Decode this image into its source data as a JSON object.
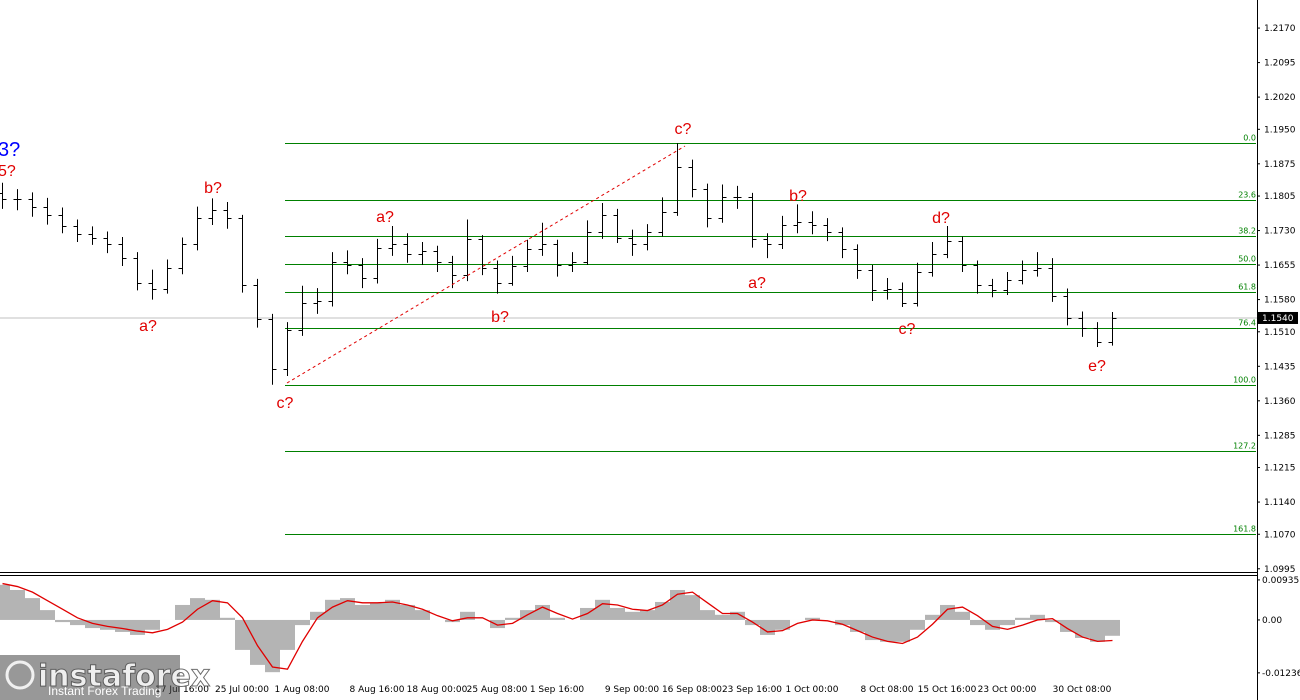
{
  "chart_data": [
    {
      "type": "ohlc",
      "color": "#000000",
      "ylim": [
        1.0988,
        1.2231
      ],
      "yticks": [
        {
          "value": 1.217,
          "label": "1.2170"
        },
        1.2095,
        {
          "value": 1.202,
          "label": "1.2020"
        },
        {
          "value": 1.195,
          "label": "1.1950"
        },
        1.1875,
        1.1805,
        {
          "value": 1.173,
          "label": "1.1730"
        },
        1.1655,
        {
          "value": 1.158,
          "label": "1.1580"
        },
        {
          "value": 1.151,
          "label": "1.1510"
        },
        1.1435,
        {
          "value": 1.136,
          "label": "1.1360"
        },
        1.1285,
        1.1215,
        {
          "value": 1.114,
          "label": "1.1140"
        },
        {
          "value": 1.107,
          "label": "1.1070"
        },
        1.0995
      ],
      "categories": [
        null,
        null,
        null,
        null,
        null,
        null,
        null,
        null,
        null,
        null,
        null,
        null,
        "17 Jul 16:00",
        null,
        null,
        null,
        "25 Jul 00:00",
        null,
        null,
        null,
        "1 Aug 08:00",
        null,
        null,
        null,
        null,
        "8 Aug 16:00",
        null,
        null,
        null,
        "18 Aug 00:00",
        null,
        null,
        null,
        "25 Aug 08:00",
        null,
        null,
        null,
        "1 Sep 16:00",
        null,
        null,
        null,
        null,
        "9 Sep 00:00",
        null,
        null,
        null,
        "16 Sep 08:00",
        null,
        null,
        null,
        "23 Sep 16:00",
        null,
        null,
        null,
        "1 Oct 00:00",
        null,
        null,
        null,
        null,
        "8 Oct 08:00",
        null,
        null,
        null,
        "15 Oct 16:00",
        null,
        null,
        null,
        "23 Oct 00:00",
        null,
        null,
        null,
        null,
        "30 Oct 08:00",
        null,
        null
      ],
      "open": [
        1.1812,
        1.1798,
        1.1798,
        1.1782,
        1.1764,
        1.174,
        1.1722,
        1.1713,
        1.17,
        1.1671,
        1.1617,
        1.1604,
        1.1649,
        1.17,
        1.1758,
        1.1775,
        1.1758,
        1.1611,
        1.1537,
        1.1429,
        1.1514,
        1.1573,
        1.1577,
        1.1662,
        1.1655,
        1.1626,
        1.1693,
        1.17,
        1.1678,
        1.1685,
        1.1662,
        1.1633,
        1.1711,
        1.1649,
        1.1617,
        1.1653,
        1.1689,
        1.17,
        1.1655,
        1.1662,
        1.1726,
        1.1764,
        1.1713,
        1.17,
        1.1726,
        1.1771,
        1.1869,
        1.182,
        1.1758,
        1.1802,
        1.1802,
        1.1711,
        1.17,
        1.1742,
        1.1749,
        1.1742,
        1.1726,
        1.1689,
        1.1644,
        1.16,
        1.1604,
        1.1573,
        1.164,
        1.1678,
        1.1707,
        1.1655,
        1.1611,
        1.16,
        1.1622,
        1.1644,
        1.1649,
        1.1588,
        1.1541,
        1.1519,
        1.1487
      ],
      "high": [
        1.1834,
        1.182,
        1.1813,
        1.1801,
        1.178,
        1.1754,
        1.1739,
        1.1728,
        1.1716,
        1.1683,
        1.1645,
        1.1667,
        1.1715,
        1.1782,
        1.18,
        1.1792,
        1.1764,
        1.1625,
        1.1549,
        1.1531,
        1.161,
        1.1605,
        1.1683,
        1.1687,
        1.167,
        1.1712,
        1.174,
        1.1724,
        1.1705,
        1.1697,
        1.1675,
        1.1754,
        1.172,
        1.1665,
        1.1675,
        1.171,
        1.1747,
        1.171,
        1.1683,
        1.1752,
        1.179,
        1.1777,
        1.1732,
        1.1744,
        1.1802,
        1.192,
        1.1884,
        1.1832,
        1.183,
        1.1827,
        1.1812,
        1.1724,
        1.1762,
        1.1787,
        1.1772,
        1.1757,
        1.1737,
        1.17,
        1.1655,
        1.1627,
        1.1617,
        1.166,
        1.1705,
        1.174,
        1.1717,
        1.1665,
        1.1625,
        1.164,
        1.1665,
        1.1683,
        1.167,
        1.1604,
        1.1554,
        1.1531,
        1.1553
      ],
      "low": [
        1.1777,
        1.1774,
        1.176,
        1.1743,
        1.1724,
        1.1705,
        1.1699,
        1.1681,
        1.1653,
        1.16,
        1.158,
        1.1593,
        1.1635,
        1.1687,
        1.1742,
        1.1734,
        1.1595,
        1.1519,
        1.1395,
        1.1414,
        1.1501,
        1.1549,
        1.1565,
        1.1635,
        1.1605,
        1.1615,
        1.1675,
        1.166,
        1.1655,
        1.164,
        1.1605,
        1.162,
        1.1633,
        1.1593,
        1.161,
        1.164,
        1.1675,
        1.163,
        1.164,
        1.1655,
        1.1712,
        1.1703,
        1.1675,
        1.1687,
        1.1717,
        1.1762,
        1.1802,
        1.1737,
        1.1747,
        1.1777,
        1.1693,
        1.167,
        1.169,
        1.1724,
        1.1722,
        1.1707,
        1.167,
        1.1625,
        1.1577,
        1.158,
        1.1564,
        1.1565,
        1.163,
        1.167,
        1.164,
        1.1593,
        1.1585,
        1.159,
        1.1613,
        1.163,
        1.1575,
        1.1524,
        1.1499,
        1.1477,
        1.148
      ],
      "close": [
        1.1798,
        1.1798,
        1.1782,
        1.1764,
        1.174,
        1.1722,
        1.1713,
        1.17,
        1.1671,
        1.1617,
        1.1604,
        1.1649,
        1.17,
        1.1758,
        1.1775,
        1.1758,
        1.1611,
        1.1537,
        1.1429,
        1.1514,
        1.1573,
        1.1577,
        1.1662,
        1.1655,
        1.1626,
        1.1693,
        1.17,
        1.1678,
        1.1685,
        1.1662,
        1.1633,
        1.1711,
        1.1649,
        1.1617,
        1.1653,
        1.1689,
        1.17,
        1.1655,
        1.1662,
        1.1726,
        1.1764,
        1.1713,
        1.17,
        1.1726,
        1.1771,
        1.1869,
        1.182,
        1.1758,
        1.1802,
        1.1802,
        1.1711,
        1.17,
        1.1742,
        1.1749,
        1.1742,
        1.1726,
        1.1689,
        1.1644,
        1.16,
        1.1604,
        1.1573,
        1.164,
        1.1678,
        1.1707,
        1.1655,
        1.1611,
        1.16,
        1.1622,
        1.1644,
        1.1649,
        1.1588,
        1.1541,
        1.1519,
        1.1487,
        1.154
      ],
      "last_price": {
        "value": 1.154,
        "label": "1.1540"
      },
      "fib_color": "#008000",
      "fib_levels": [
        {
          "label": "0.0",
          "value": 1.192
        },
        {
          "label": "23.6",
          "value": 1.1796
        },
        {
          "label": "38.2",
          "value": 1.1719
        },
        {
          "label": "50.0",
          "value": 1.1658
        },
        {
          "label": "61.8",
          "value": 1.1596
        },
        {
          "label": "76.4",
          "value": 1.1519
        },
        {
          "label": "100.0",
          "value": 1.1395
        },
        {
          "label": "127.2",
          "value": 1.1252
        },
        {
          "label": "161.8",
          "value": 1.1071
        }
      ],
      "annotations": [
        {
          "text": "3?",
          "color": "#0000ff"
        },
        {
          "text": "5?",
          "color": "#e00000"
        },
        {
          "text": "a?",
          "color": "#e00000"
        },
        {
          "text": "b?",
          "color": "#e00000"
        },
        {
          "text": "c?",
          "color": "#e00000"
        },
        {
          "text": "a?",
          "color": "#e00000"
        },
        {
          "text": "b?",
          "color": "#e00000"
        },
        {
          "text": "c?",
          "color": "#e00000"
        },
        {
          "text": "a?",
          "color": "#e00000"
        },
        {
          "text": "b?",
          "color": "#e00000"
        },
        {
          "text": "c?",
          "color": "#e00000"
        },
        {
          "text": "d?",
          "color": "#e00000"
        },
        {
          "text": "e?",
          "color": "#e00000"
        }
      ]
    },
    {
      "type": "macd",
      "color": "#b4b4b4",
      "signal_color": "#e00000",
      "ylim": [
        -0.0187,
        0.0105
      ],
      "yticks": [
        0.00935,
        {
          "value": 0,
          "label": "0.00"
        },
        -0.01236
      ],
      "histogram": [
        0.0082,
        0.007,
        0.0051,
        0.0023,
        -0.0005,
        -0.0012,
        -0.0019,
        -0.0023,
        -0.0028,
        -0.0035,
        -0.0023,
        0.0,
        0.0035,
        0.0051,
        0.0047,
        0.0005,
        -0.007,
        -0.0105,
        -0.0122,
        -0.007,
        -0.0012,
        0.0019,
        0.0047,
        0.0051,
        0.0035,
        0.004,
        0.0047,
        0.0035,
        0.0023,
        0.0,
        -0.0005,
        0.0019,
        0.0,
        -0.0019,
        0.0005,
        0.0023,
        0.0035,
        0.0005,
        0.0,
        0.0028,
        0.0047,
        0.0028,
        0.0019,
        0.0023,
        0.0042,
        0.007,
        0.0058,
        0.0023,
        0.0012,
        0.0019,
        -0.0012,
        -0.0035,
        -0.0023,
        0.0,
        0.0005,
        0.0,
        -0.0012,
        -0.0028,
        -0.0047,
        -0.0051,
        -0.0051,
        -0.0023,
        0.0012,
        0.0035,
        0.0019,
        -0.0012,
        -0.0023,
        -0.0012,
        0.0005,
        0.0012,
        -0.0005,
        -0.0028,
        -0.0042,
        -0.0051,
        -0.0037
      ],
      "signal": [
        0.0085,
        0.0078,
        0.0065,
        0.0045,
        0.0025,
        0.0005,
        -0.0008,
        -0.0015,
        -0.002,
        -0.0026,
        -0.003,
        -0.0022,
        -0.0005,
        0.0025,
        0.0045,
        0.004,
        0.0005,
        -0.006,
        -0.011,
        -0.0115,
        -0.005,
        0.0005,
        0.003,
        0.0045,
        0.004,
        0.004,
        0.0042,
        0.0035,
        0.0025,
        0.001,
        -0.0002,
        0.0005,
        0.0005,
        -0.0012,
        -0.0008,
        0.0012,
        0.003,
        0.0015,
        0.0002,
        0.0015,
        0.0038,
        0.0035,
        0.0025,
        0.0022,
        0.0035,
        0.006,
        0.0065,
        0.004,
        0.0015,
        0.0015,
        -0.0005,
        -0.0028,
        -0.0025,
        -0.0008,
        0.0,
        -0.0002,
        -0.001,
        -0.0025,
        -0.004,
        -0.005,
        -0.0055,
        -0.004,
        -0.001,
        0.0025,
        0.003,
        0.001,
        -0.0015,
        -0.0022,
        -0.0012,
        0.0,
        0.0003,
        -0.002,
        -0.004,
        -0.005,
        -0.0048
      ]
    }
  ],
  "watermark": {
    "brand": "instaforex",
    "tagline": "Instant Forex Trading"
  }
}
